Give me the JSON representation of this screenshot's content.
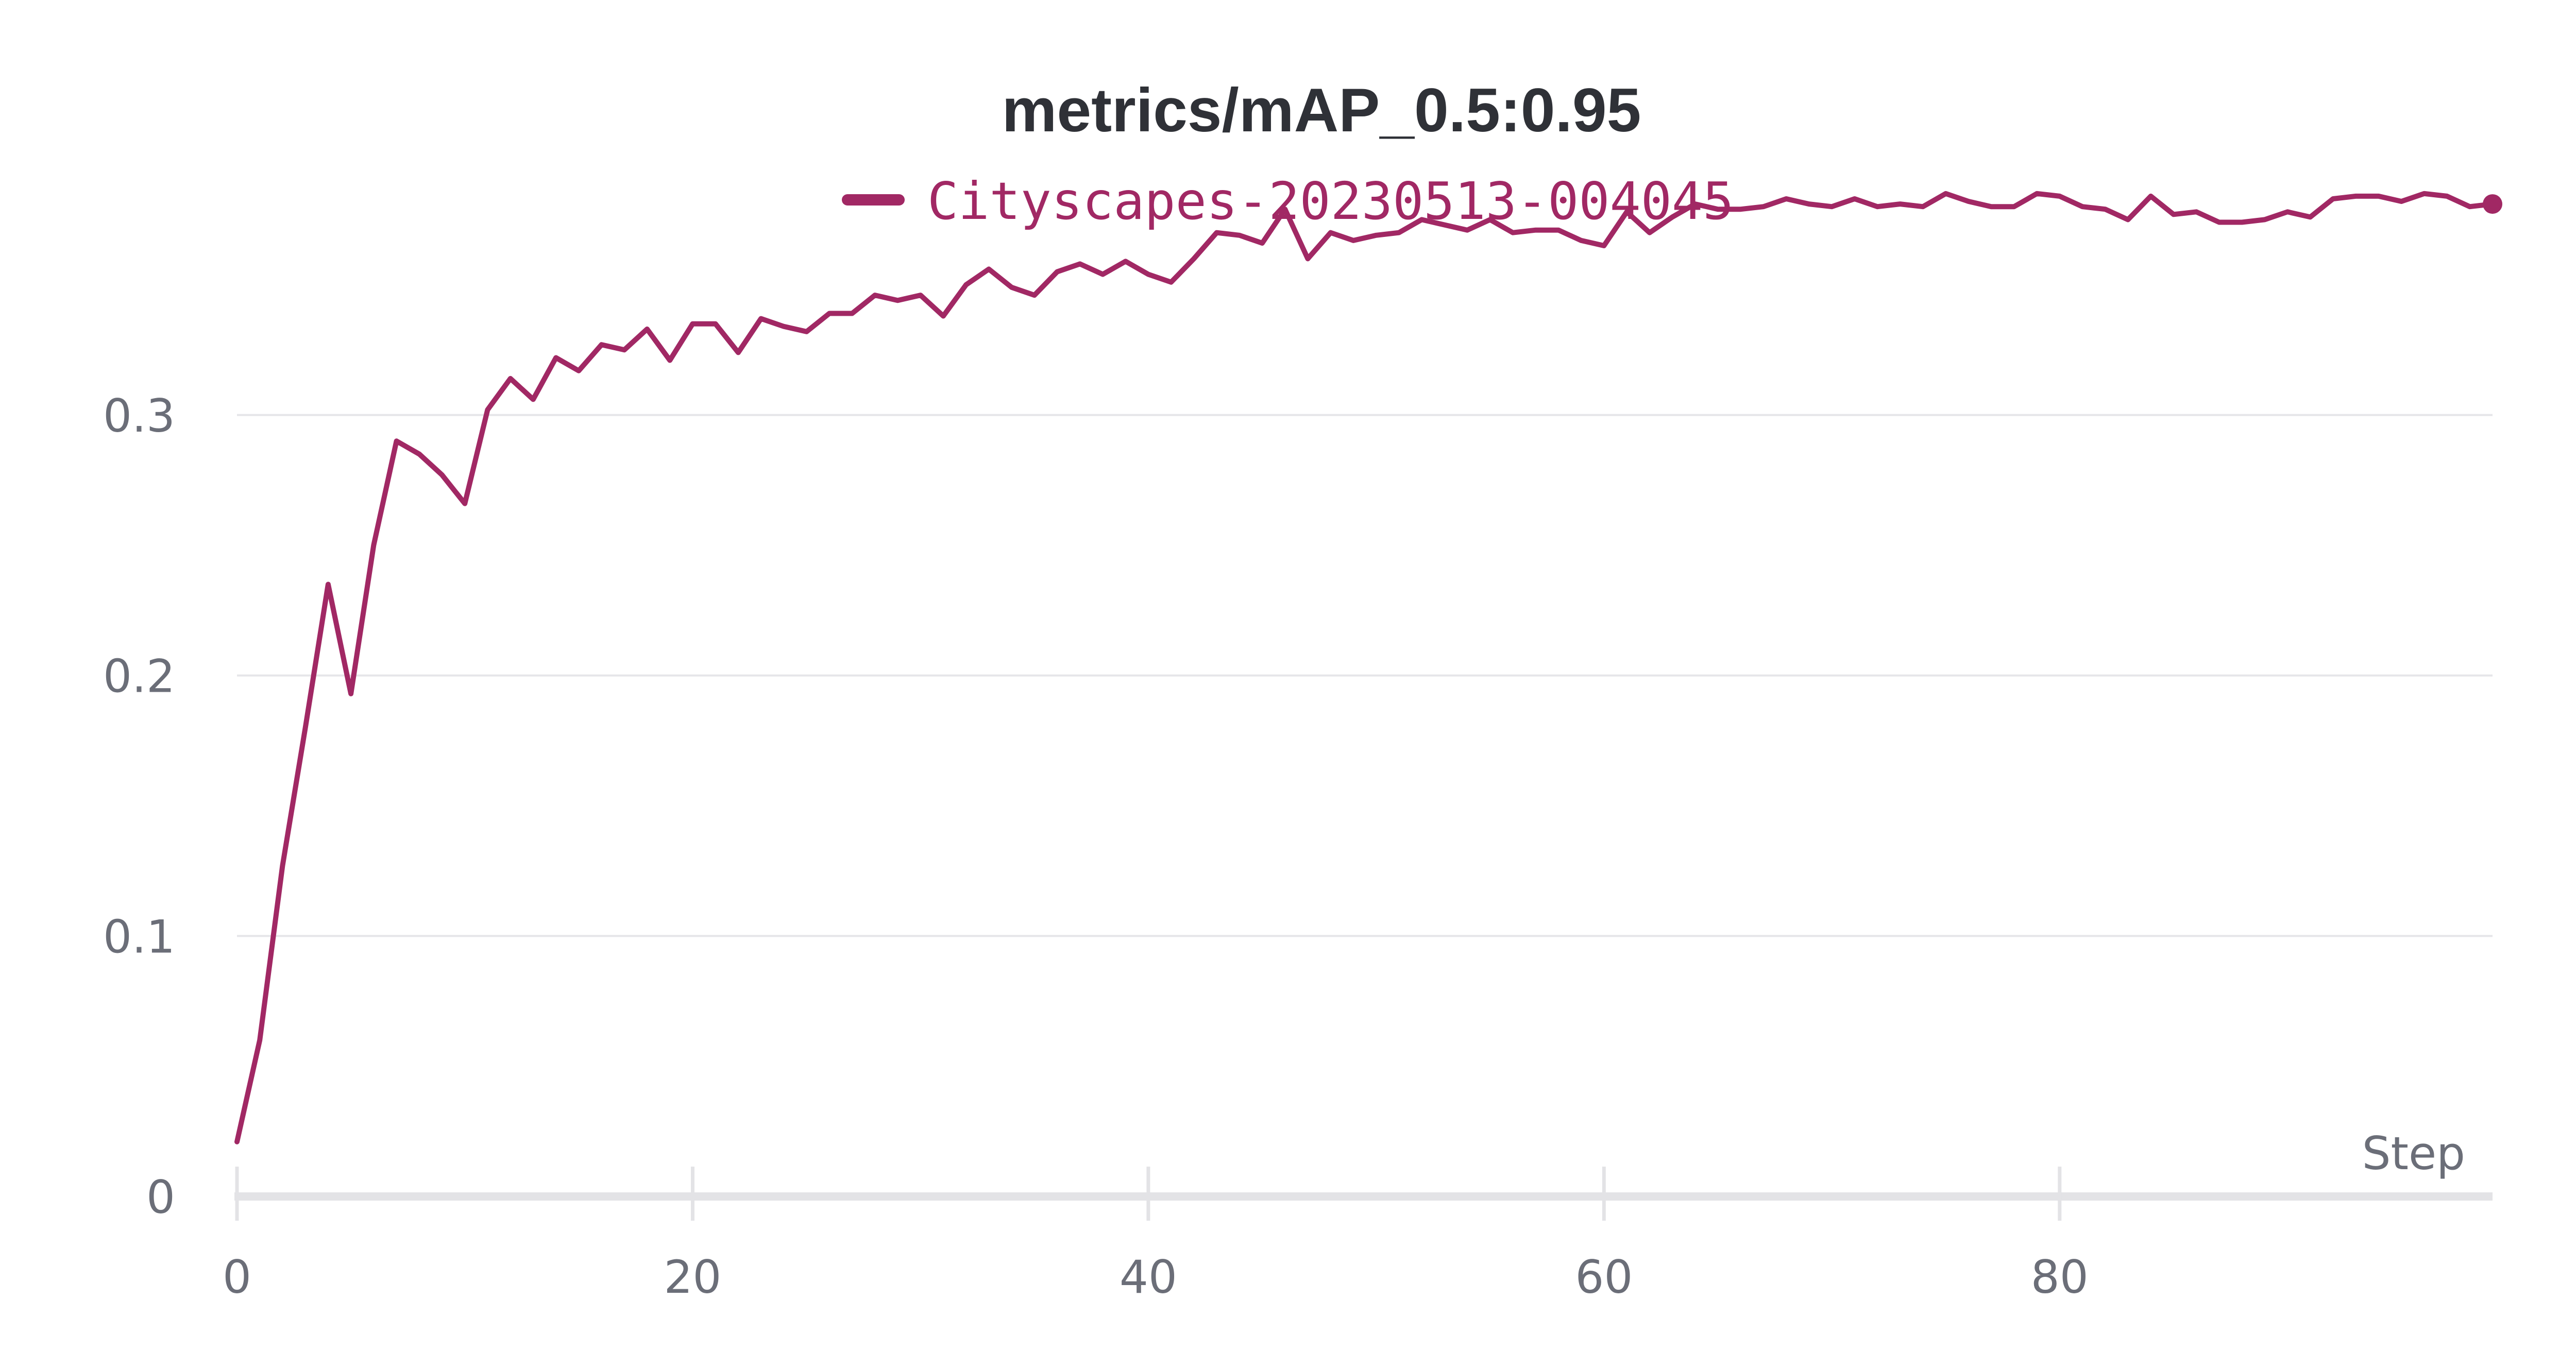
{
  "chart_data": {
    "type": "line",
    "title": "metrics/mAP_0.5:0.95",
    "xlabel": "Step",
    "ylabel": "",
    "xlim": [
      0,
      99
    ],
    "ylim": [
      0,
      0.4
    ],
    "x_ticks": [
      0,
      20,
      40,
      60,
      80
    ],
    "x_tick_labels": [
      "0",
      "20",
      "40",
      "60",
      "80"
    ],
    "y_ticks": [
      0,
      0.1,
      0.2,
      0.3
    ],
    "y_tick_labels": [
      "0",
      "0.1",
      "0.2",
      "0.3"
    ],
    "grid": true,
    "legend_position": "top-center",
    "series": [
      {
        "name": "Cityscapes-20230513-004045",
        "color": "#a12864",
        "values": [
          0.021,
          0.06,
          0.127,
          0.18,
          0.235,
          0.193,
          0.25,
          0.29,
          0.285,
          0.277,
          0.266,
          0.302,
          0.314,
          0.306,
          0.322,
          0.317,
          0.327,
          0.325,
          0.333,
          0.321,
          0.335,
          0.335,
          0.324,
          0.337,
          0.334,
          0.332,
          0.339,
          0.339,
          0.346,
          0.344,
          0.346,
          0.338,
          0.35,
          0.356,
          0.349,
          0.346,
          0.355,
          0.358,
          0.354,
          0.359,
          0.354,
          0.351,
          0.36,
          0.37,
          0.369,
          0.366,
          0.379,
          0.36,
          0.37,
          0.367,
          0.369,
          0.37,
          0.375,
          0.373,
          0.371,
          0.375,
          0.37,
          0.371,
          0.371,
          0.367,
          0.365,
          0.378,
          0.37,
          0.376,
          0.381,
          0.379,
          0.379,
          0.38,
          0.383,
          0.381,
          0.38,
          0.383,
          0.38,
          0.381,
          0.38,
          0.385,
          0.382,
          0.38,
          0.38,
          0.385,
          0.384,
          0.38,
          0.379,
          0.375,
          0.384,
          0.377,
          0.378,
          0.374,
          0.374,
          0.375,
          0.378,
          0.376,
          0.383,
          0.384,
          0.384,
          0.382,
          0.385,
          0.384,
          0.38,
          0.381
        ]
      }
    ]
  }
}
